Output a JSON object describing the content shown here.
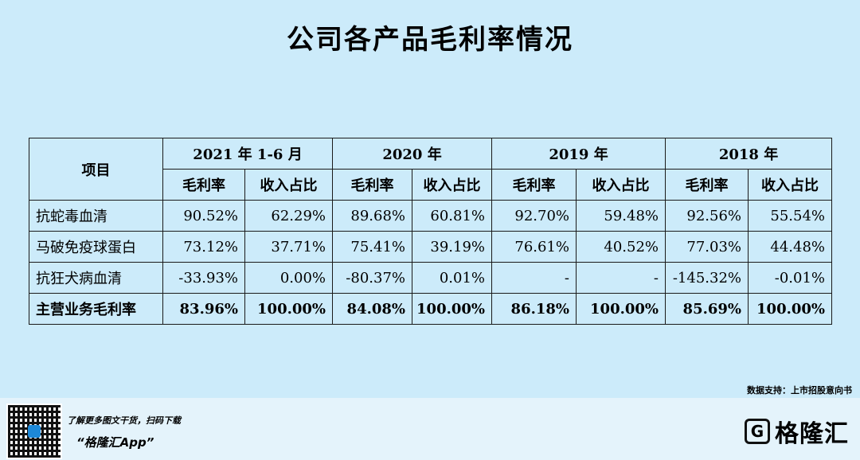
{
  "title": "公司各产品毛利率情况",
  "chart_data": {
    "type": "table",
    "columns": {
      "item_header": "项目",
      "periods": [
        "2021 年 1-6 月",
        "2020 年",
        "2019 年",
        "2018 年"
      ],
      "sub_headers": [
        "毛利率",
        "收入占比"
      ]
    },
    "rows": [
      {
        "name": "抗蛇毒血清",
        "values": [
          "90.52%",
          "62.29%",
          "89.68%",
          "60.81%",
          "92.70%",
          "59.48%",
          "92.56%",
          "55.54%"
        ]
      },
      {
        "name": "马破免疫球蛋白",
        "values": [
          "73.12%",
          "37.71%",
          "75.41%",
          "39.19%",
          "76.61%",
          "40.52%",
          "77.03%",
          "44.48%"
        ]
      },
      {
        "name": "抗狂犬病血清",
        "values": [
          "-33.93%",
          "0.00%",
          "-80.37%",
          "0.01%",
          "-",
          "-",
          "-145.32%",
          "-0.01%"
        ]
      },
      {
        "name": "主营业务毛利率",
        "values": [
          "83.96%",
          "100.00%",
          "84.08%",
          "100.00%",
          "86.18%",
          "100.00%",
          "85.69%",
          "100.00%"
        ]
      }
    ]
  },
  "source": "数据支持：上市招股意向书",
  "footer": {
    "line1": "了解更多图文干货，扫码下载",
    "line2": "“格隆汇App”",
    "brand": "格隆汇",
    "brand_icon": "G"
  }
}
